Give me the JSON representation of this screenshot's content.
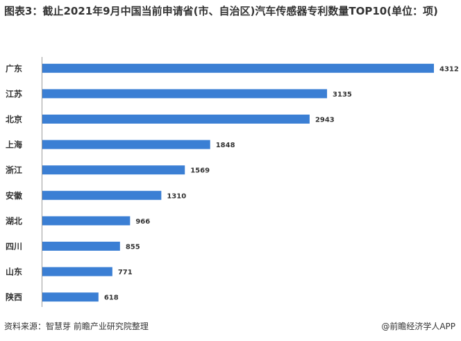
{
  "chart_data": {
    "type": "bar",
    "orientation": "horizontal",
    "title": "图表3：截止2021年9月中国当前申请省(市、自治区)汽车传感器专利数量TOP10(单位：项)",
    "categories": [
      "广东",
      "江苏",
      "北京",
      "上海",
      "浙江",
      "安徽",
      "湖北",
      "四川",
      "山东",
      "陕西"
    ],
    "values": [
      4312,
      3135,
      2943,
      1848,
      1569,
      1310,
      966,
      855,
      771,
      618
    ],
    "color": "#3b7fd4",
    "source": "资料来源：智慧芽 前瞻产业研究院整理",
    "credit": "@前瞻经济学人APP"
  }
}
